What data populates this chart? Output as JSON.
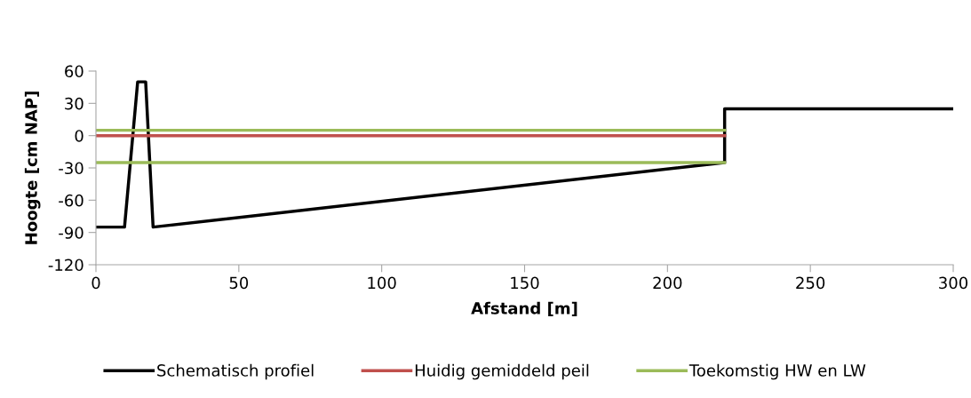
{
  "chart_data": {
    "type": "line",
    "xlabel": "Afstand [m]",
    "ylabel": "Hoogte [cm NAP]",
    "xlim": [
      0,
      300
    ],
    "xticks": [
      0,
      50,
      100,
      150,
      200,
      250,
      300
    ],
    "ylim": [
      -120,
      60
    ],
    "yticks": [
      -120,
      -90,
      -60,
      -30,
      0,
      30,
      60
    ],
    "grid": false,
    "legend": "bottom",
    "marker": "none",
    "line_style": "solid",
    "series": [
      {
        "name": "Schematisch profiel",
        "color": "#000000",
        "x": [
          0,
          10,
          14.6,
          17.4,
          20,
          220,
          220,
          300
        ],
        "values": [
          -85,
          -85,
          50,
          50,
          -85,
          -25,
          25,
          25
        ]
      },
      {
        "name": "Huidig gemiddeld peil",
        "color": "#c0504d",
        "x": [
          0,
          220
        ],
        "values": [
          0,
          0
        ]
      },
      {
        "name": "Toekomstig HW en LW",
        "color": "#9bbb59",
        "x": [
          0,
          220
        ],
        "values": [
          5,
          5
        ]
      },
      {
        "color": "#9bbb59",
        "x": [
          0,
          220
        ],
        "values": [
          -25,
          -25
        ]
      }
    ]
  }
}
